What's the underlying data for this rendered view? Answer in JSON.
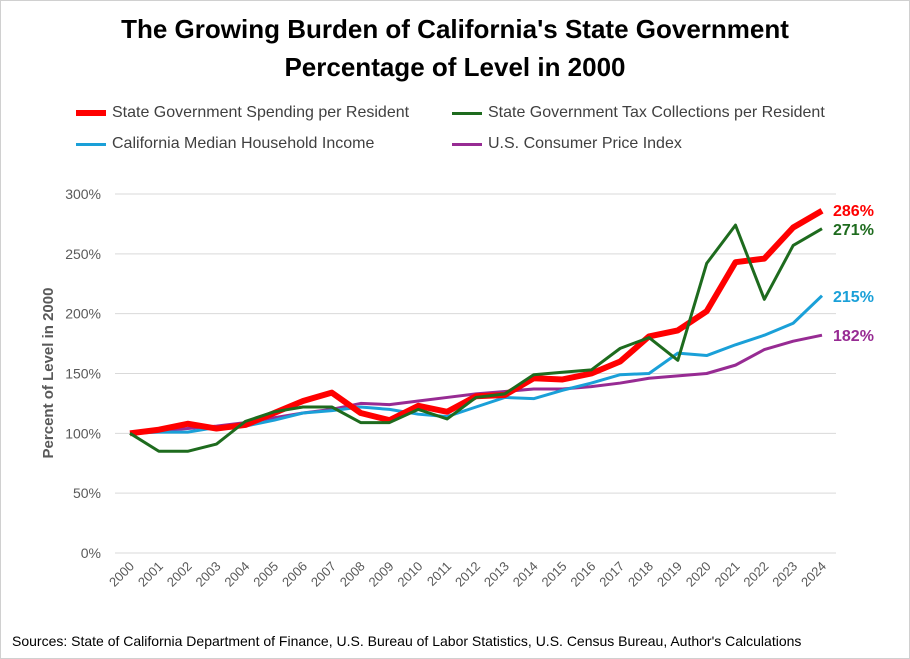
{
  "chart_data": {
    "type": "line",
    "title": "The Growing Burden of California's State Government",
    "subtitle": "Percentage of Level in 2000",
    "xlabel": "",
    "ylabel": "Percent of Level in 2000",
    "ylim": [
      0,
      300
    ],
    "yticks": [
      "0%",
      "50%",
      "100%",
      "150%",
      "200%",
      "250%",
      "300%"
    ],
    "ytick_values": [
      0,
      50,
      100,
      150,
      200,
      250,
      300
    ],
    "grid": "horizontal",
    "legend_position": "top",
    "x": [
      "2000",
      "2001",
      "2002",
      "2003",
      "2004",
      "2005",
      "2006",
      "2007",
      "2008",
      "2009",
      "2010",
      "2011",
      "2012",
      "2013",
      "2014",
      "2015",
      "2016",
      "2017",
      "2018",
      "2019",
      "2020",
      "2021",
      "2022",
      "2023",
      "2024"
    ],
    "series": [
      {
        "name": "State Government Spending per Resident",
        "color": "#ff0000",
        "end_label": "286%",
        "values": [
          100,
          103,
          108,
          104,
          107,
          117,
          127,
          134,
          117,
          111,
          123,
          118,
          131,
          132,
          146,
          145,
          150,
          160,
          181,
          186,
          202,
          243,
          246,
          272,
          286
        ]
      },
      {
        "name": "State Government Tax Collections per Resident",
        "color": "#1e6b1e",
        "end_label": "271%",
        "values": [
          100,
          85,
          85,
          91,
          110,
          118,
          122,
          122,
          109,
          109,
          120,
          112,
          130,
          133,
          149,
          151,
          153,
          171,
          180,
          161,
          242,
          274,
          212,
          257,
          271
        ]
      },
      {
        "name": "California Median Household Income",
        "color": "#1aa0d8",
        "end_label": "215%",
        "values": [
          100,
          101,
          101,
          105,
          106,
          111,
          117,
          119,
          122,
          120,
          116,
          114,
          122,
          130,
          129,
          136,
          142,
          149,
          150,
          167,
          165,
          174,
          182,
          192,
          215
        ]
      },
      {
        "name": "U.S. Consumer Price Index",
        "color": "#972b93",
        "end_label": "182%",
        "values": [
          100,
          102,
          104,
          106,
          109,
          113,
          117,
          120,
          125,
          124,
          127,
          130,
          133,
          135,
          137,
          137,
          139,
          142,
          146,
          148,
          150,
          157,
          170,
          177,
          182
        ]
      }
    ]
  },
  "source": "Sources: State of California Department of Finance, U.S. Bureau of Labor Statistics, U.S. Census Bureau, Author's Calculations"
}
